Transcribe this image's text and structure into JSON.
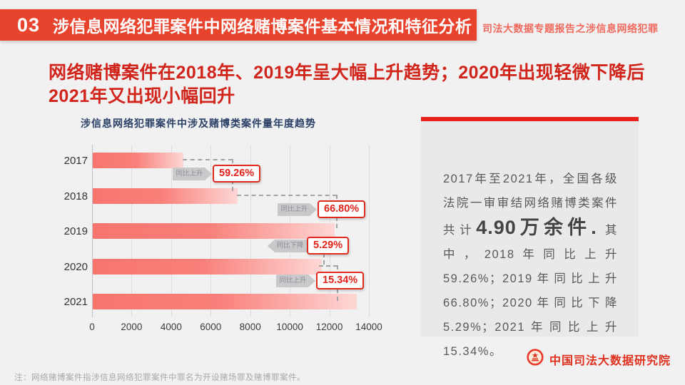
{
  "header": {
    "section_number": "03",
    "title": "涉信息网络犯罪案件中网络赌博案件基本情况和特征分析",
    "tagline": "司法大数据专题报告之涉信息网络犯罪"
  },
  "subtitle": {
    "text": "网络赌博案件在2018年、2019年呈大幅上升趋势；2020年出现轻微下降后2021年又出现小幅回升"
  },
  "chart_data": {
    "type": "bar",
    "orientation": "horizontal",
    "title": "涉信息网络犯罪案件中涉及赌博类案件量年度趋势",
    "categories": [
      "2017",
      "2018",
      "2019",
      "2020",
      "2021"
    ],
    "values": [
      4600,
      7330,
      12220,
      11570,
      13350
    ],
    "xlim": [
      0,
      14000
    ],
    "x_ticks": [
      0,
      2000,
      4000,
      6000,
      8000,
      10000,
      12000,
      14000
    ],
    "grid": true,
    "legend": "none",
    "bar_color_start": "#f8756e",
    "bar_color_end": "#fdd7d5",
    "annotations": [
      {
        "between": [
          "2017",
          "2018"
        ],
        "label": "同比上升",
        "value": "59.26%",
        "direction": "up"
      },
      {
        "between": [
          "2018",
          "2019"
        ],
        "label": "同比上升",
        "value": "66.80%",
        "direction": "up"
      },
      {
        "between": [
          "2019",
          "2020"
        ],
        "label": "同比下降",
        "value": "5.29%",
        "direction": "down"
      },
      {
        "between": [
          "2020",
          "2021"
        ],
        "label": "同比上升",
        "value": "15.34%",
        "direction": "up"
      }
    ]
  },
  "info_panel": {
    "intro": "2017年至2021年，全国各级法院一审审结网络赌博类案件共计",
    "highlight": "4.90万余件.",
    "detail": " 其中，2018年同比上升59.26%；2019年同比上升 66.80%；2020年同比下降5.29%；2021年同比上升15.34%。",
    "accent_color": "#e8211a"
  },
  "footer": {
    "note": "注：网络赌博案件指涉信息网络犯罪案件中罪名为开设赌场罪及赌博罪案件。",
    "logo_text": "中国司法大数据研究院",
    "logo_color": "#e0301e"
  }
}
